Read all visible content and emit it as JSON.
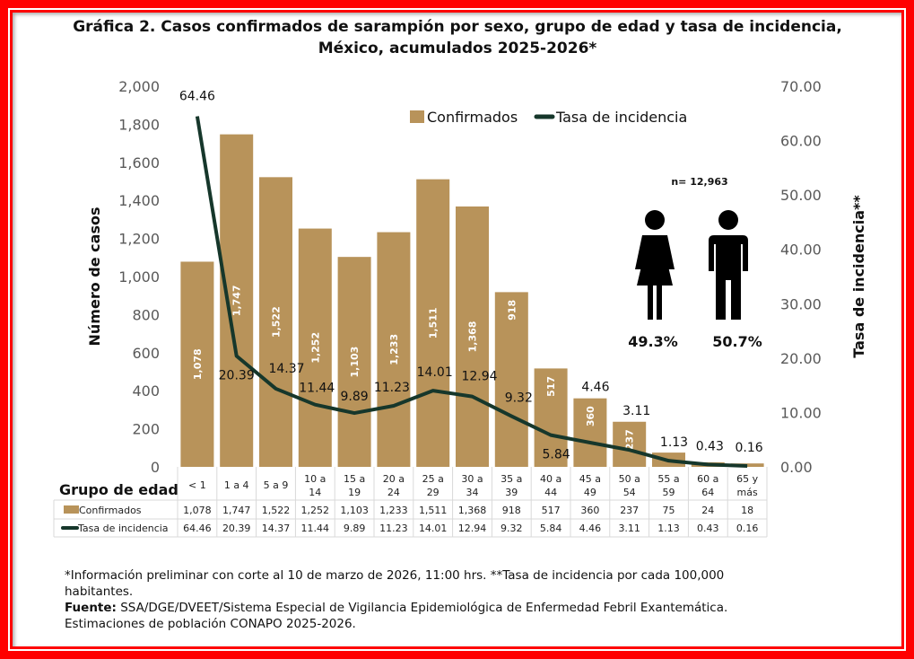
{
  "title_line1": "Gráfica 2. Casos confirmados  de sarampión por sexo, grupo de edad y tasa de incidencia,",
  "title_line2": "México, acumulados 2025-2026*",
  "chart_data": {
    "type": "bar+line",
    "categories": [
      "< 1",
      "1 a 4",
      "5 a 9",
      "10 a 14",
      "15 a 19",
      "20 a 24",
      "25 a 29",
      "30 a 34",
      "35 a 39",
      "40 a 44",
      "45 a 49",
      "50 a 54",
      "55 a 59",
      "60 a 64",
      "65 y más"
    ],
    "category_lines": [
      [
        "< 1"
      ],
      [
        "1 a 4"
      ],
      [
        "5 a 9"
      ],
      [
        "10 a",
        "14"
      ],
      [
        "15 a",
        "19"
      ],
      [
        "20 a",
        "24"
      ],
      [
        "25 a",
        "29"
      ],
      [
        "30 a",
        "34"
      ],
      [
        "35 a",
        "39"
      ],
      [
        "40 a",
        "44"
      ],
      [
        "45 a",
        "49"
      ],
      [
        "50 a",
        "54"
      ],
      [
        "55 a",
        "59"
      ],
      [
        "60 a",
        "64"
      ],
      [
        "65 y",
        "más"
      ]
    ],
    "series": [
      {
        "name": "Confirmados",
        "type": "bar",
        "axis": "left",
        "color": "#b8935a",
        "values": [
          1078,
          1747,
          1522,
          1252,
          1103,
          1233,
          1511,
          1368,
          918,
          517,
          360,
          237,
          75,
          24,
          18
        ],
        "labels": [
          "1,078",
          "1,747",
          "1,522",
          "1,252",
          "1,103",
          "1,233",
          "1,511",
          "1,368",
          "918",
          "517",
          "360",
          "237",
          "75",
          "24",
          "18"
        ]
      },
      {
        "name": "Tasa de incidencia",
        "type": "line",
        "axis": "right",
        "color": "#16372b",
        "values": [
          64.46,
          20.39,
          14.37,
          11.44,
          9.89,
          11.23,
          14.01,
          12.94,
          9.32,
          5.84,
          4.46,
          3.11,
          1.13,
          0.43,
          0.16
        ],
        "labels": [
          "64.46",
          "20.39",
          "14.37",
          "11.44",
          "9.89",
          "11.23",
          "14.01",
          "12.94",
          "9.32",
          "5.84",
          "4.46",
          "3.11",
          "1.13",
          "0.43",
          "0.16"
        ]
      }
    ],
    "ylabel": "Número de casos",
    "y2label": "Tasa de incidencia**",
    "ylim": [
      0,
      2000
    ],
    "y2lim": [
      0,
      70
    ],
    "yticks": [
      "0",
      "200",
      "400",
      "600",
      "800",
      "1,000",
      "1,200",
      "1,400",
      "1,600",
      "1,800",
      "2,000"
    ],
    "y2ticks": [
      "0.00",
      "10.00",
      "20.00",
      "30.00",
      "40.00",
      "50.00",
      "60.00",
      "70.00"
    ],
    "xlabel": "Grupo de edad",
    "legend": "top-right",
    "grid": false,
    "annotations": {
      "n": "n= 12,963",
      "female_pct": "49.3%",
      "male_pct": "50.7%",
      "female_icon": "female-person-icon",
      "male_icon": "male-person-icon"
    }
  },
  "notes": {
    "line1": "*Información preliminar con corte al 10 de marzo de 2026, 11:00 hrs. **Tasa de incidencia por cada 100,000 habitantes.",
    "fuente_label": "Fuente:",
    "fuente": " SSA/DGE/DVEET/Sistema Especial de Vigilancia Epidemiológica de Enfermedad Febril Exantemática. Estimaciones de población CONAPO 2025-2026."
  },
  "colors": {
    "frame": "#ff0000",
    "bar": "#b8935a",
    "line": "#16372b"
  }
}
